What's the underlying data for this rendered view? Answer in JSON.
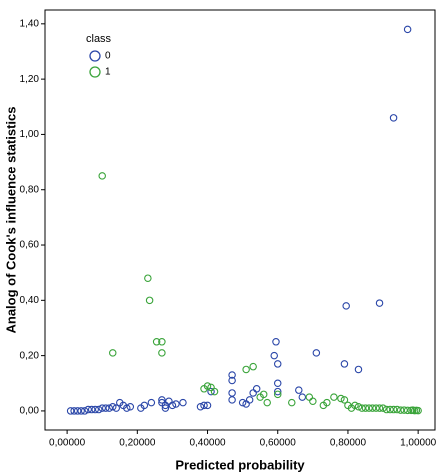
{
  "chart_data": {
    "type": "scatter",
    "x_label": "Predicted probability",
    "y_label": "Analog of Cook's influence statistics",
    "legend_title": "class",
    "xlim": [
      -0.063,
      1.048
    ],
    "ylim": [
      -0.069,
      1.45
    ],
    "xticks": [
      {
        "value": 0,
        "label": "0,00000"
      },
      {
        "value": 0.2,
        "label": "0,20000"
      },
      {
        "value": 0.4,
        "label": "0,40000"
      },
      {
        "value": 0.6,
        "label": "0,60000"
      },
      {
        "value": 0.8,
        "label": "0,80000"
      },
      {
        "value": 1,
        "label": "1,00000"
      }
    ],
    "yticks": [
      {
        "value": 0,
        "label": "0,00"
      },
      {
        "value": 0.2,
        "label": "0,20"
      },
      {
        "value": 0.4,
        "label": "0,40"
      },
      {
        "value": 0.6,
        "label": "0,60"
      },
      {
        "value": 0.8,
        "label": "0,80"
      },
      {
        "value": 1,
        "label": "1,00"
      },
      {
        "value": 1.2,
        "label": "1,20"
      },
      {
        "value": 1.4,
        "label": "1,40"
      }
    ],
    "series": [
      {
        "name": "0",
        "color": "#2a46a8",
        "x": [
          0.01,
          0.02,
          0.03,
          0.04,
          0.05,
          0.06,
          0.07,
          0.08,
          0.09,
          0.1,
          0.11,
          0.12,
          0.13,
          0.14,
          0.15,
          0.16,
          0.17,
          0.18,
          0.21,
          0.22,
          0.24,
          0.27,
          0.27,
          0.28,
          0.28,
          0.29,
          0.3,
          0.31,
          0.33,
          0.38,
          0.39,
          0.4,
          0.41,
          0.47,
          0.47,
          0.47,
          0.47,
          0.5,
          0.51,
          0.52,
          0.53,
          0.54,
          0.59,
          0.595,
          0.6,
          0.6,
          0.6,
          0.66,
          0.67,
          0.71,
          0.79,
          0.795,
          0.83,
          0.89,
          0.93,
          0.97
        ],
        "values": [
          0,
          0,
          0,
          0,
          0,
          0.005,
          0.005,
          0.005,
          0.005,
          0.01,
          0.01,
          0.01,
          0.015,
          0.01,
          0.03,
          0.02,
          0.01,
          0.015,
          0.01,
          0.02,
          0.03,
          0.04,
          0.03,
          0.02,
          0.01,
          0.035,
          0.02,
          0.025,
          0.03,
          0.015,
          0.02,
          0.02,
          0.07,
          0.13,
          0.11,
          0.065,
          0.04,
          0.03,
          0.025,
          0.04,
          0.065,
          0.08,
          0.2,
          0.25,
          0.17,
          0.1,
          0.07,
          0.075,
          0.05,
          0.21,
          0.17,
          0.38,
          0.15,
          0.39,
          1.06,
          1.38
        ]
      },
      {
        "name": "1",
        "color": "#3aa43a",
        "x": [
          0.1,
          0.13,
          0.23,
          0.235,
          0.255,
          0.27,
          0.27,
          0.39,
          0.4,
          0.41,
          0.42,
          0.51,
          0.53,
          0.55,
          0.56,
          0.57,
          0.6,
          0.64,
          0.69,
          0.7,
          0.73,
          0.74,
          0.76,
          0.78,
          0.79,
          0.8,
          0.81,
          0.82,
          0.83,
          0.84,
          0.85,
          0.86,
          0.87,
          0.88,
          0.89,
          0.9,
          0.91,
          0.92,
          0.93,
          0.94,
          0.95,
          0.96,
          0.97,
          0.98,
          0.99,
          1.0,
          0.995,
          0.985
        ],
        "values": [
          0.85,
          0.21,
          0.48,
          0.4,
          0.25,
          0.25,
          0.21,
          0.08,
          0.09,
          0.085,
          0.07,
          0.15,
          0.16,
          0.05,
          0.06,
          0.03,
          0.06,
          0.03,
          0.05,
          0.035,
          0.02,
          0.03,
          0.05,
          0.045,
          0.04,
          0.02,
          0.01,
          0.02,
          0.015,
          0.01,
          0.01,
          0.01,
          0.01,
          0.01,
          0.01,
          0.01,
          0.005,
          0.005,
          0.005,
          0.005,
          0.003,
          0.003,
          0.002,
          0.002,
          0.001,
          0.001,
          0.002,
          0.003
        ]
      }
    ]
  }
}
